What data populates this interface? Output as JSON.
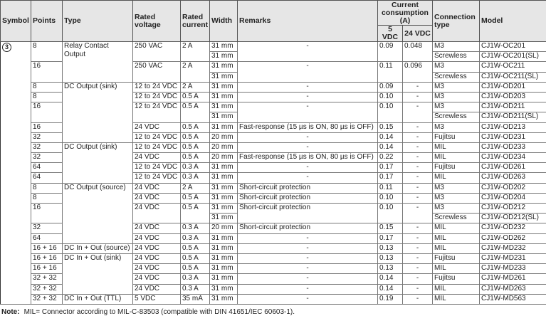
{
  "header": {
    "symbol": "Symbol",
    "points": "Points",
    "type": "Type",
    "rated_voltage": "Rated voltage",
    "rated_current": "Rated current",
    "width": "Width",
    "remarks": "Remarks",
    "current_consumption": "Current consumption (A)",
    "v5": "5 VDC",
    "v24": "24 VDC",
    "connection_type": "Connection type",
    "model": "Model"
  },
  "symbol": "3",
  "groups": [
    {
      "type": "Relay Contact Output",
      "modules": [
        {
          "points": "8",
          "voltage": "250 VAC",
          "current": "2 A",
          "remarks": "-",
          "c5": "0.09",
          "c24": "0.048",
          "variants": [
            {
              "width": "31 mm",
              "connection": "M3",
              "model": "CJ1W-OC201"
            },
            {
              "width": "31 mm",
              "connection": "Screwless",
              "model": "CJ1W-OC201(SL)"
            }
          ]
        },
        {
          "points": "16",
          "voltage": "250 VAC",
          "current": "2 A",
          "remarks": "-",
          "c5": "0.11",
          "c24": "0.096",
          "variants": [
            {
              "width": "31 mm",
              "connection": "M3",
              "model": "CJ1W-OC211"
            },
            {
              "width": "31 mm",
              "connection": "Screwless",
              "model": "CJ1W-OC211(SL)"
            }
          ]
        }
      ]
    },
    {
      "type": "DC Output (sink)",
      "modules": [
        {
          "points": "8",
          "voltage": "12 to 24 VDC",
          "current": "2 A",
          "remarks": "-",
          "c5": "0.09",
          "c24": "-",
          "variants": [
            {
              "width": "31 mm",
              "connection": "M3",
              "model": "CJ1W-OD201"
            }
          ]
        },
        {
          "points": "8",
          "voltage": "12 to 24 VDC",
          "current": "0.5 A",
          "remarks": "-",
          "c5": "0.10",
          "c24": "-",
          "variants": [
            {
              "width": "31 mm",
              "connection": "M3",
              "model": "CJ1W-OD203"
            }
          ]
        },
        {
          "points": "16",
          "voltage": "12 to 24 VDC",
          "current": "0.5 A",
          "remarks": "-",
          "c5": "0.10",
          "c24": "-",
          "variants": [
            {
              "width": "31 mm",
              "connection": "M3",
              "model": "CJ1W-OD211"
            },
            {
              "width": "31 mm",
              "connection": "Screwless",
              "model": "CJ1W-OD211(SL)"
            }
          ]
        },
        {
          "points": "16",
          "voltage": "24 VDC",
          "current": "0.5 A",
          "remarks": "Fast-response (15 µs is ON, 80 µs is OFF)",
          "c5": "0.15",
          "c24": "-",
          "variants": [
            {
              "width": "31 mm",
              "connection": "M3",
              "model": "CJ1W-OD213"
            }
          ]
        },
        {
          "points": "32",
          "voltage": "12 to 24 VDC",
          "current": "0.5 A",
          "remarks": "-",
          "c5": "0.14",
          "c24": "-",
          "variants": [
            {
              "width": "20 mm",
              "connection": "Fujitsu",
              "model": "CJ1W-OD231"
            }
          ]
        }
      ]
    },
    {
      "type": "DC Output (sink)",
      "modules": [
        {
          "points": "32",
          "voltage": "12 to 24 VDC",
          "current": "0.5 A",
          "remarks": "-",
          "c5": "0.14",
          "c24": "-",
          "variants": [
            {
              "width": "20 mm",
              "connection": "MIL",
              "model": "CJ1W-OD233"
            }
          ]
        },
        {
          "points": "32",
          "voltage": "24 VDC",
          "current": "0.5 A",
          "remarks": "Fast-response (15 µs is ON, 80 µs is OFF)",
          "c5": "0.22",
          "c24": "-",
          "variants": [
            {
              "width": "20 mm",
              "connection": "MIL",
              "model": "CJ1W-OD234"
            }
          ]
        },
        {
          "points": "64",
          "voltage": "12 to 24 VDC",
          "current": "0.3 A",
          "remarks": "-",
          "c5": "0.17",
          "c24": "-",
          "variants": [
            {
              "width": "31 mm",
              "connection": "Fujitsu",
              "model": "CJ1W-OD261"
            }
          ]
        },
        {
          "points": "64",
          "voltage": "12 to 24 VDC",
          "current": "0.3 A",
          "remarks": "-",
          "c5": "0.17",
          "c24": "-",
          "variants": [
            {
              "width": "31 mm",
              "connection": "MIL",
              "model": "CJ1W-OD263"
            }
          ]
        }
      ]
    },
    {
      "type": "DC Output (source)",
      "modules": [
        {
          "points": "8",
          "voltage": "24 VDC",
          "current": "2 A",
          "remarks": "Short-circuit protection",
          "c5": "0.11",
          "c24": "-",
          "variants": [
            {
              "width": "31 mm",
              "connection": "M3",
              "model": "CJ1W-OD202"
            }
          ]
        },
        {
          "points": "8",
          "voltage": "24 VDC",
          "current": "0.5 A",
          "remarks": "Short-circuit protection",
          "c5": "0.10",
          "c24": "-",
          "variants": [
            {
              "width": "31 mm",
              "connection": "M3",
              "model": "CJ1W-OD204"
            }
          ]
        },
        {
          "points": "16",
          "voltage": "24 VDC",
          "current": "0.5 A",
          "remarks": "Short-circuit protection",
          "c5": "0.10",
          "c24": "-",
          "variants": [
            {
              "width": "31 mm",
              "connection": "M3",
              "model": "CJ1W-OD212"
            },
            {
              "width": "31 mm",
              "connection": "Screwless",
              "model": "CJ1W-OD212(SL)"
            }
          ]
        },
        {
          "points": "32",
          "voltage": "24 VDC",
          "current": "0.3 A",
          "remarks": "Short-circuit protection",
          "c5": "0.15",
          "c24": "-",
          "variants": [
            {
              "width": "20 mm",
              "connection": "MIL",
              "model": "CJ1W-OD232"
            }
          ]
        },
        {
          "points": "64",
          "voltage": "24 VDC",
          "current": "0.3 A",
          "remarks": "-",
          "c5": "0.17",
          "c24": "-",
          "variants": [
            {
              "width": "31 mm",
              "connection": "MIL",
              "model": "CJ1W-OD262"
            }
          ]
        }
      ]
    },
    {
      "type": "DC In + Out (source)",
      "modules": [
        {
          "points": "16 + 16",
          "voltage": "24 VDC",
          "current": "0.5 A",
          "remarks": "-",
          "c5": "0.13",
          "c24": "-",
          "variants": [
            {
              "width": "31 mm",
              "connection": "MIL",
              "model": "CJ1W-MD232"
            }
          ]
        }
      ]
    },
    {
      "type": "DC In + Out (sink)",
      "modules": [
        {
          "points": "16 + 16",
          "voltage": "24 VDC",
          "current": "0.5 A",
          "remarks": "-",
          "c5": "0.13",
          "c24": "-",
          "variants": [
            {
              "width": "31 mm",
              "connection": "Fujitsu",
              "model": "CJ1W-MD231"
            }
          ]
        },
        {
          "points": "16 + 16",
          "voltage": "24 VDC",
          "current": "0.5 A",
          "remarks": "-",
          "c5": "0.13",
          "c24": "-",
          "variants": [
            {
              "width": "31 mm",
              "connection": "MIL",
              "model": "CJ1W-MD233"
            }
          ]
        },
        {
          "points": "32 + 32",
          "voltage": "24 VDC",
          "current": "0.3 A",
          "remarks": "-",
          "c5": "0.14",
          "c24": "-",
          "variants": [
            {
              "width": "31 mm",
              "connection": "Fujitsu",
              "model": "CJ1W-MD261"
            }
          ]
        },
        {
          "points": "32 + 32",
          "voltage": "24 VDC",
          "current": "0.3 A",
          "remarks": "-",
          "c5": "0.14",
          "c24": "-",
          "variants": [
            {
              "width": "31 mm",
              "connection": "MIL",
              "model": "CJ1W-MD263"
            }
          ]
        }
      ]
    },
    {
      "type": "DC In + Out (TTL)",
      "modules": [
        {
          "points": "32 + 32",
          "voltage": "5 VDC",
          "current": "35 mA",
          "remarks": "-",
          "c5": "0.19",
          "c24": "-",
          "variants": [
            {
              "width": "31 mm",
              "connection": "MIL",
              "model": "CJ1W-MD563"
            }
          ]
        }
      ]
    }
  ],
  "note": {
    "label": "Note:",
    "text": "MIL= Connector according to MIL-C-83503 (compatible with DIN 41651/IEC 60603-1)."
  }
}
